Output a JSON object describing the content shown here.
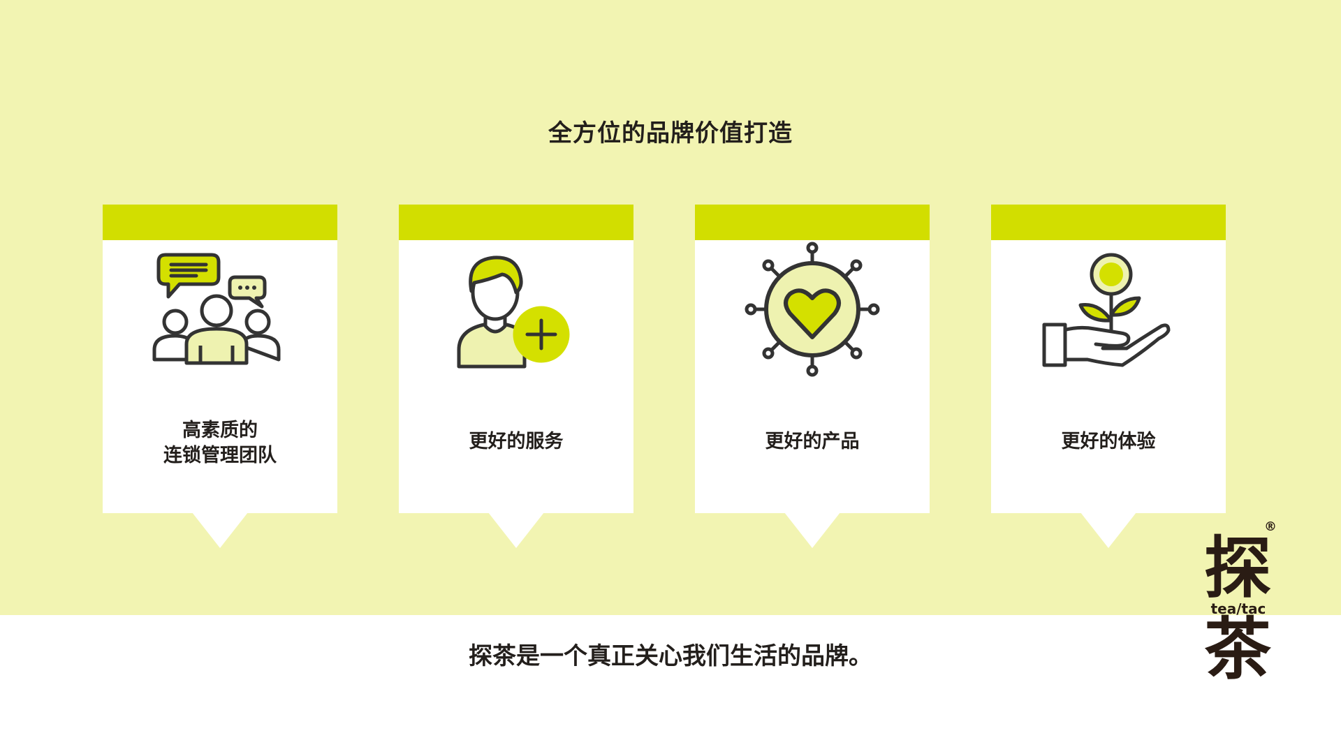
{
  "page": {
    "title": "全方位的品牌价值打造",
    "tagline": "探茶是一个真正关心我们生活的品牌。"
  },
  "cards": [
    {
      "label_lines": [
        "高素质的",
        "连锁管理团队"
      ],
      "icon": "team-chat-icon"
    },
    {
      "label_lines": [
        "更好的服务"
      ],
      "icon": "person-add-icon"
    },
    {
      "label_lines": [
        "更好的产品"
      ],
      "icon": "heart-sun-icon"
    },
    {
      "label_lines": [
        "更好的体验"
      ],
      "icon": "hand-plant-icon"
    }
  ],
  "logo": {
    "mark_1": "探",
    "wordmark": "tea/tac",
    "mark_2": "茶",
    "registered": "®"
  },
  "colors": {
    "background": "#f2f4b2",
    "accent": "#d2de00",
    "icon_fill": "#eef2b0",
    "icon_accent": "#d4e000",
    "text": "#231f1c",
    "card": "#ffffff"
  }
}
